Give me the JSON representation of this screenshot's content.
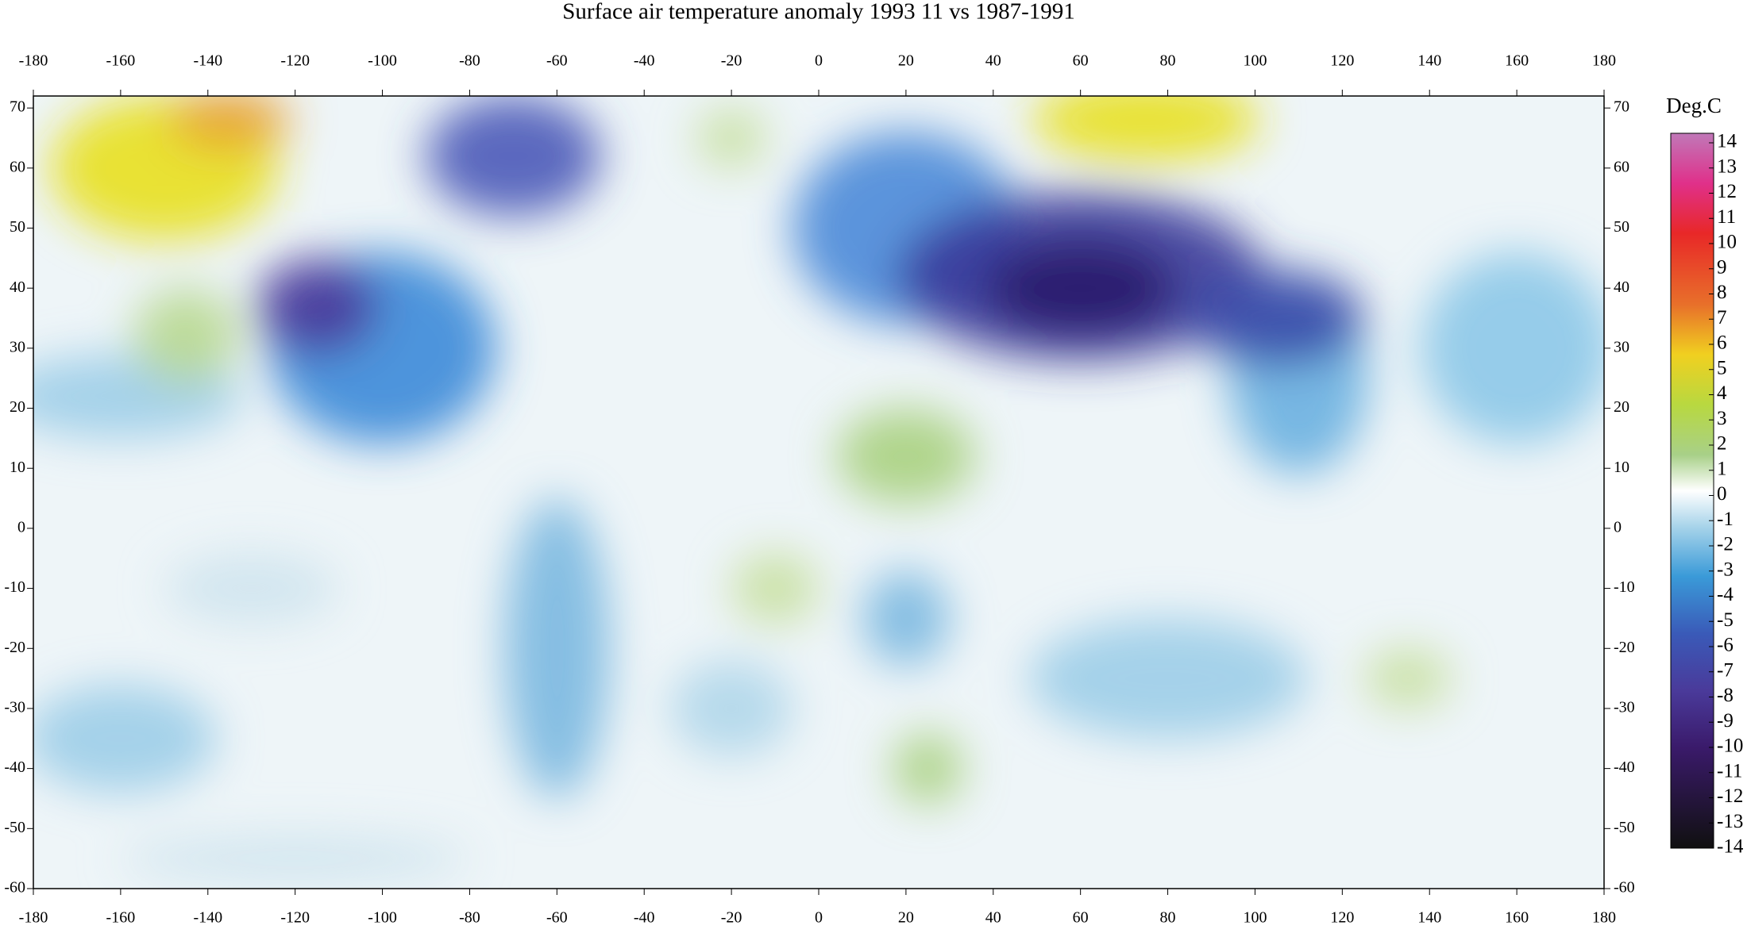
{
  "map": {
    "title": "Surface air temperature anomaly 1993 11 vs 1987-1991",
    "lon_range": [
      -180,
      180
    ],
    "lat_range": [
      -60,
      72
    ],
    "lon_ticks": [
      -180,
      -160,
      -140,
      -120,
      -100,
      -80,
      -60,
      -40,
      -20,
      0,
      20,
      40,
      60,
      80,
      100,
      120,
      140,
      160,
      180
    ],
    "lat_ticks": [
      70,
      60,
      50,
      40,
      30,
      20,
      10,
      0,
      -10,
      -20,
      -30,
      -40,
      -50,
      -60
    ],
    "colorbar": {
      "label": "Deg.C",
      "ticks": [
        14,
        13,
        12,
        11,
        10,
        9,
        8,
        7,
        6,
        5,
        4,
        3,
        2,
        1,
        0,
        -1,
        -2,
        -3,
        -4,
        -5,
        -6,
        -7,
        -8,
        -9,
        -10,
        -11,
        -12,
        -13,
        -14
      ]
    }
  }
}
